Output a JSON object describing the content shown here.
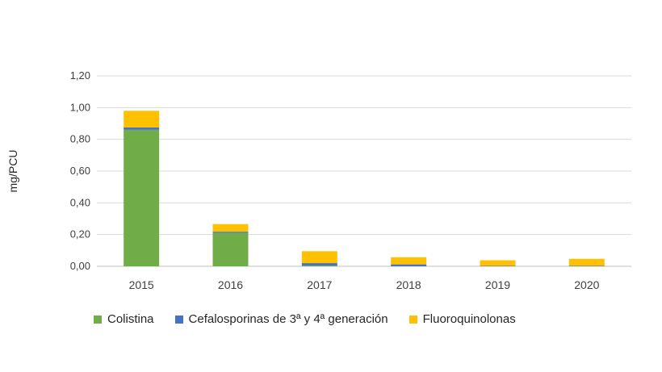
{
  "chart_data": {
    "type": "bar",
    "stacked": true,
    "title": "",
    "xlabel": "",
    "ylabel": "mg/PCU",
    "categories": [
      "2015",
      "2016",
      "2017",
      "2018",
      "2019",
      "2020"
    ],
    "ylim": [
      0,
      1.2
    ],
    "yticks": [
      "0,00",
      "0,20",
      "0,40",
      "0,60",
      "0,80",
      "1,00",
      "1,20"
    ],
    "ytick_values": [
      0,
      0.2,
      0.4,
      0.6,
      0.8,
      1.0,
      1.2
    ],
    "grid": true,
    "legend_position": "bottom",
    "series": [
      {
        "name": "Colistina",
        "color": "#70ad47",
        "values": [
          0.86,
          0.21,
          0.005,
          0.0,
          0.0,
          0.0
        ]
      },
      {
        "name": "Cefalosporinas de 3ª y 4ª generación",
        "color": "#4472c4",
        "values": [
          0.015,
          0.008,
          0.015,
          0.012,
          0.003,
          0.003
        ]
      },
      {
        "name": "Fluoroquinolonas",
        "color": "#ffc000",
        "values": [
          0.105,
          0.048,
          0.075,
          0.045,
          0.035,
          0.044
        ]
      }
    ]
  }
}
